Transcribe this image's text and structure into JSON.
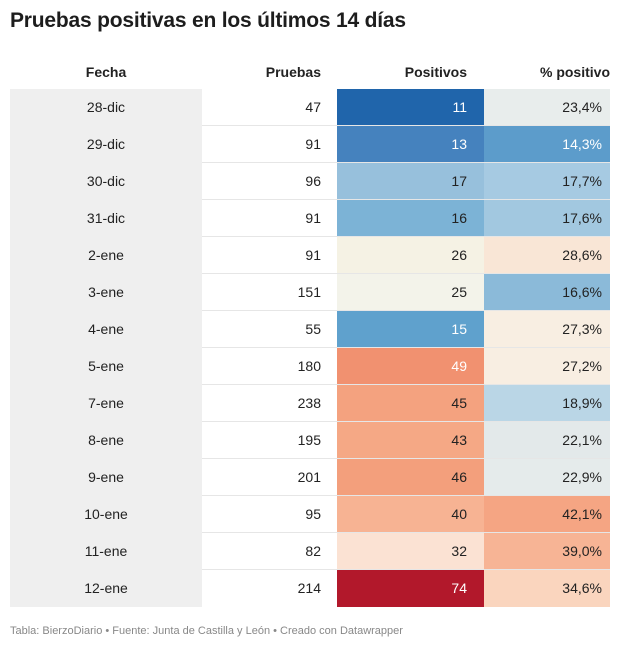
{
  "title": "Pruebas positivas en los últimos 14 días",
  "footer": {
    "table_label": "Tabla: BierzoDiario",
    "source_label": "Fuente: Junta de Castilla y León",
    "tool_label": "Creado con Datawrapper",
    "separator": " • "
  },
  "colors": {
    "date_column_bg": "#efefef",
    "dark_text_on": "#ffffff"
  },
  "chart_data": {
    "type": "table",
    "title": "Pruebas positivas en los últimos 14 días",
    "columns": [
      "Fecha",
      "Pruebas",
      "Positivos",
      "% positivo"
    ],
    "rows": [
      {
        "fecha": "28-dic",
        "pruebas": "47",
        "positivos": "11",
        "pct": "23,4%",
        "pos_color": "#2065ab",
        "pos_text": "#ffffff",
        "pct_color": "#e8edec",
        "pct_text": "#222222"
      },
      {
        "fecha": "29-dic",
        "pruebas": "91",
        "positivos": "13",
        "pct": "14,3%",
        "pos_color": "#4582be",
        "pos_text": "#ffffff",
        "pct_color": "#5c9ccb",
        "pct_text": "#ffffff"
      },
      {
        "fecha": "30-dic",
        "pruebas": "96",
        "positivos": "17",
        "pct": "17,7%",
        "pos_color": "#97c0dc",
        "pos_text": "#222222",
        "pct_color": "#a6cae2",
        "pct_text": "#222222"
      },
      {
        "fecha": "31-dic",
        "pruebas": "91",
        "positivos": "16",
        "pct": "17,6%",
        "pos_color": "#7cb3d6",
        "pos_text": "#222222",
        "pct_color": "#a2c8e0",
        "pct_text": "#222222"
      },
      {
        "fecha": "2-ene",
        "pruebas": "91",
        "positivos": "26",
        "pct": "28,6%",
        "pos_color": "#f5f2e4",
        "pos_text": "#222222",
        "pct_color": "#f9e6d6",
        "pct_text": "#222222"
      },
      {
        "fecha": "3-ene",
        "pruebas": "151",
        "positivos": "25",
        "pct": "16,6%",
        "pos_color": "#f3f3ea",
        "pos_text": "#222222",
        "pct_color": "#8bbad9",
        "pct_text": "#222222"
      },
      {
        "fecha": "4-ene",
        "pruebas": "55",
        "positivos": "15",
        "pct": "27,3%",
        "pos_color": "#5fa1cd",
        "pos_text": "#ffffff",
        "pct_color": "#f8eee2",
        "pct_text": "#222222"
      },
      {
        "fecha": "5-ene",
        "pruebas": "180",
        "positivos": "49",
        "pct": "27,2%",
        "pos_color": "#f19170",
        "pos_text": "#ffffff",
        "pct_color": "#f8eee2",
        "pct_text": "#222222"
      },
      {
        "fecha": "7-ene",
        "pruebas": "238",
        "positivos": "45",
        "pct": "18,9%",
        "pos_color": "#f4a27f",
        "pos_text": "#222222",
        "pct_color": "#bad6e6",
        "pct_text": "#222222"
      },
      {
        "fecha": "8-ene",
        "pruebas": "195",
        "positivos": "43",
        "pct": "22,1%",
        "pos_color": "#f5a885",
        "pos_text": "#222222",
        "pct_color": "#e3e9ea",
        "pct_text": "#222222"
      },
      {
        "fecha": "9-ene",
        "pruebas": "201",
        "positivos": "46",
        "pct": "22,9%",
        "pos_color": "#f39f7c",
        "pos_text": "#222222",
        "pct_color": "#e5ebeb",
        "pct_text": "#222222"
      },
      {
        "fecha": "10-ene",
        "pruebas": "95",
        "positivos": "40",
        "pct": "42,1%",
        "pos_color": "#f7b393",
        "pos_text": "#222222",
        "pct_color": "#f5a583",
        "pct_text": "#222222"
      },
      {
        "fecha": "11-ene",
        "pruebas": "82",
        "positivos": "32",
        "pct": "39,0%",
        "pos_color": "#fbe2d3",
        "pos_text": "#222222",
        "pct_color": "#f7b495",
        "pct_text": "#222222"
      },
      {
        "fecha": "12-ene",
        "pruebas": "214",
        "positivos": "74",
        "pct": "34,6%",
        "pos_color": "#b2182b",
        "pos_text": "#ffffff",
        "pct_color": "#fad5be",
        "pct_text": "#222222"
      }
    ]
  }
}
